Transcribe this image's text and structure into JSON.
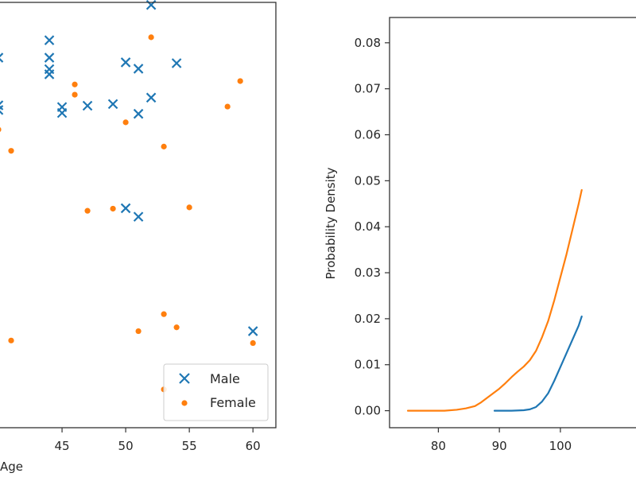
{
  "chart_data": [
    {
      "type": "scatter",
      "xlabel": "Age",
      "ylabel": "",
      "xlim": [
        39.5,
        61.8
      ],
      "ylim": [
        0,
        1
      ],
      "xticks": [
        "45",
        "50",
        "55",
        "60"
      ],
      "grid": false,
      "legend": {
        "placement": "bottom-right",
        "entries": [
          "Male",
          "Female"
        ]
      },
      "series": [
        {
          "name": "Male",
          "color": "#1f77b4",
          "marker": "x",
          "points": [
            [
              40,
              0.87
            ],
            [
              40,
              0.758
            ],
            [
              40,
              0.747
            ],
            [
              44,
              0.911
            ],
            [
              44,
              0.87
            ],
            [
              44,
              0.843
            ],
            [
              44,
              0.831
            ],
            [
              45,
              0.754
            ],
            [
              45,
              0.74
            ],
            [
              47,
              0.757
            ],
            [
              49,
              0.761
            ],
            [
              50,
              0.859
            ],
            [
              50,
              0.516
            ],
            [
              51,
              0.844
            ],
            [
              51,
              0.738
            ],
            [
              51,
              0.496
            ],
            [
              52,
              0.994
            ],
            [
              52,
              0.776
            ],
            [
              54,
              0.857
            ],
            [
              60,
              0.227
            ]
          ]
        },
        {
          "name": "Female",
          "color": "#ff7f0e",
          "marker": "dot",
          "points": [
            [
              40,
              0.701
            ],
            [
              41,
              0.651
            ],
            [
              41,
              0.205
            ],
            [
              46,
              0.807
            ],
            [
              46,
              0.783
            ],
            [
              47,
              0.51
            ],
            [
              49,
              0.515
            ],
            [
              50,
              0.718
            ],
            [
              51,
              0.227
            ],
            [
              52,
              0.918
            ],
            [
              53,
              0.661
            ],
            [
              53,
              0.267
            ],
            [
              53,
              0.09
            ],
            [
              54,
              0.236
            ],
            [
              55,
              0.518
            ],
            [
              58,
              0.755
            ],
            [
              59,
              0.815
            ],
            [
              60,
              0.199
            ]
          ]
        }
      ]
    },
    {
      "type": "line",
      "xlabel": "",
      "ylabel": "Probability Density",
      "xlim": [
        72,
        115
      ],
      "ylim": [
        -0.0037,
        0.0855
      ],
      "xticks": [
        "80",
        "90",
        "100"
      ],
      "yticks": [
        "0.00",
        "0.01",
        "0.02",
        "0.03",
        "0.04",
        "0.05",
        "0.06",
        "0.07",
        "0.08"
      ],
      "grid": false,
      "series": [
        {
          "color": "#1f77b4",
          "x": [
            89.2,
            92,
            94,
            95,
            96,
            97,
            98,
            99,
            100,
            101,
            102,
            103,
            103.5
          ],
          "y": [
            0.0,
            0.0,
            0.0001,
            0.0003,
            0.0008,
            0.002,
            0.0038,
            0.0065,
            0.0095,
            0.0125,
            0.0155,
            0.0185,
            0.0205
          ]
        },
        {
          "color": "#ff7f0e",
          "x": [
            75,
            78,
            81,
            83,
            84.5,
            86,
            87,
            88,
            89,
            90,
            91,
            92,
            93,
            94,
            95,
            96,
            97,
            98,
            99,
            100,
            101,
            102,
            103,
            103.5
          ],
          "y": [
            0.0,
            0.0,
            0.0,
            0.0002,
            0.0005,
            0.001,
            0.0018,
            0.0028,
            0.0038,
            0.0048,
            0.006,
            0.0073,
            0.0085,
            0.0096,
            0.011,
            0.013,
            0.016,
            0.0195,
            0.024,
            0.029,
            0.034,
            0.0395,
            0.045,
            0.048
          ]
        }
      ]
    }
  ]
}
